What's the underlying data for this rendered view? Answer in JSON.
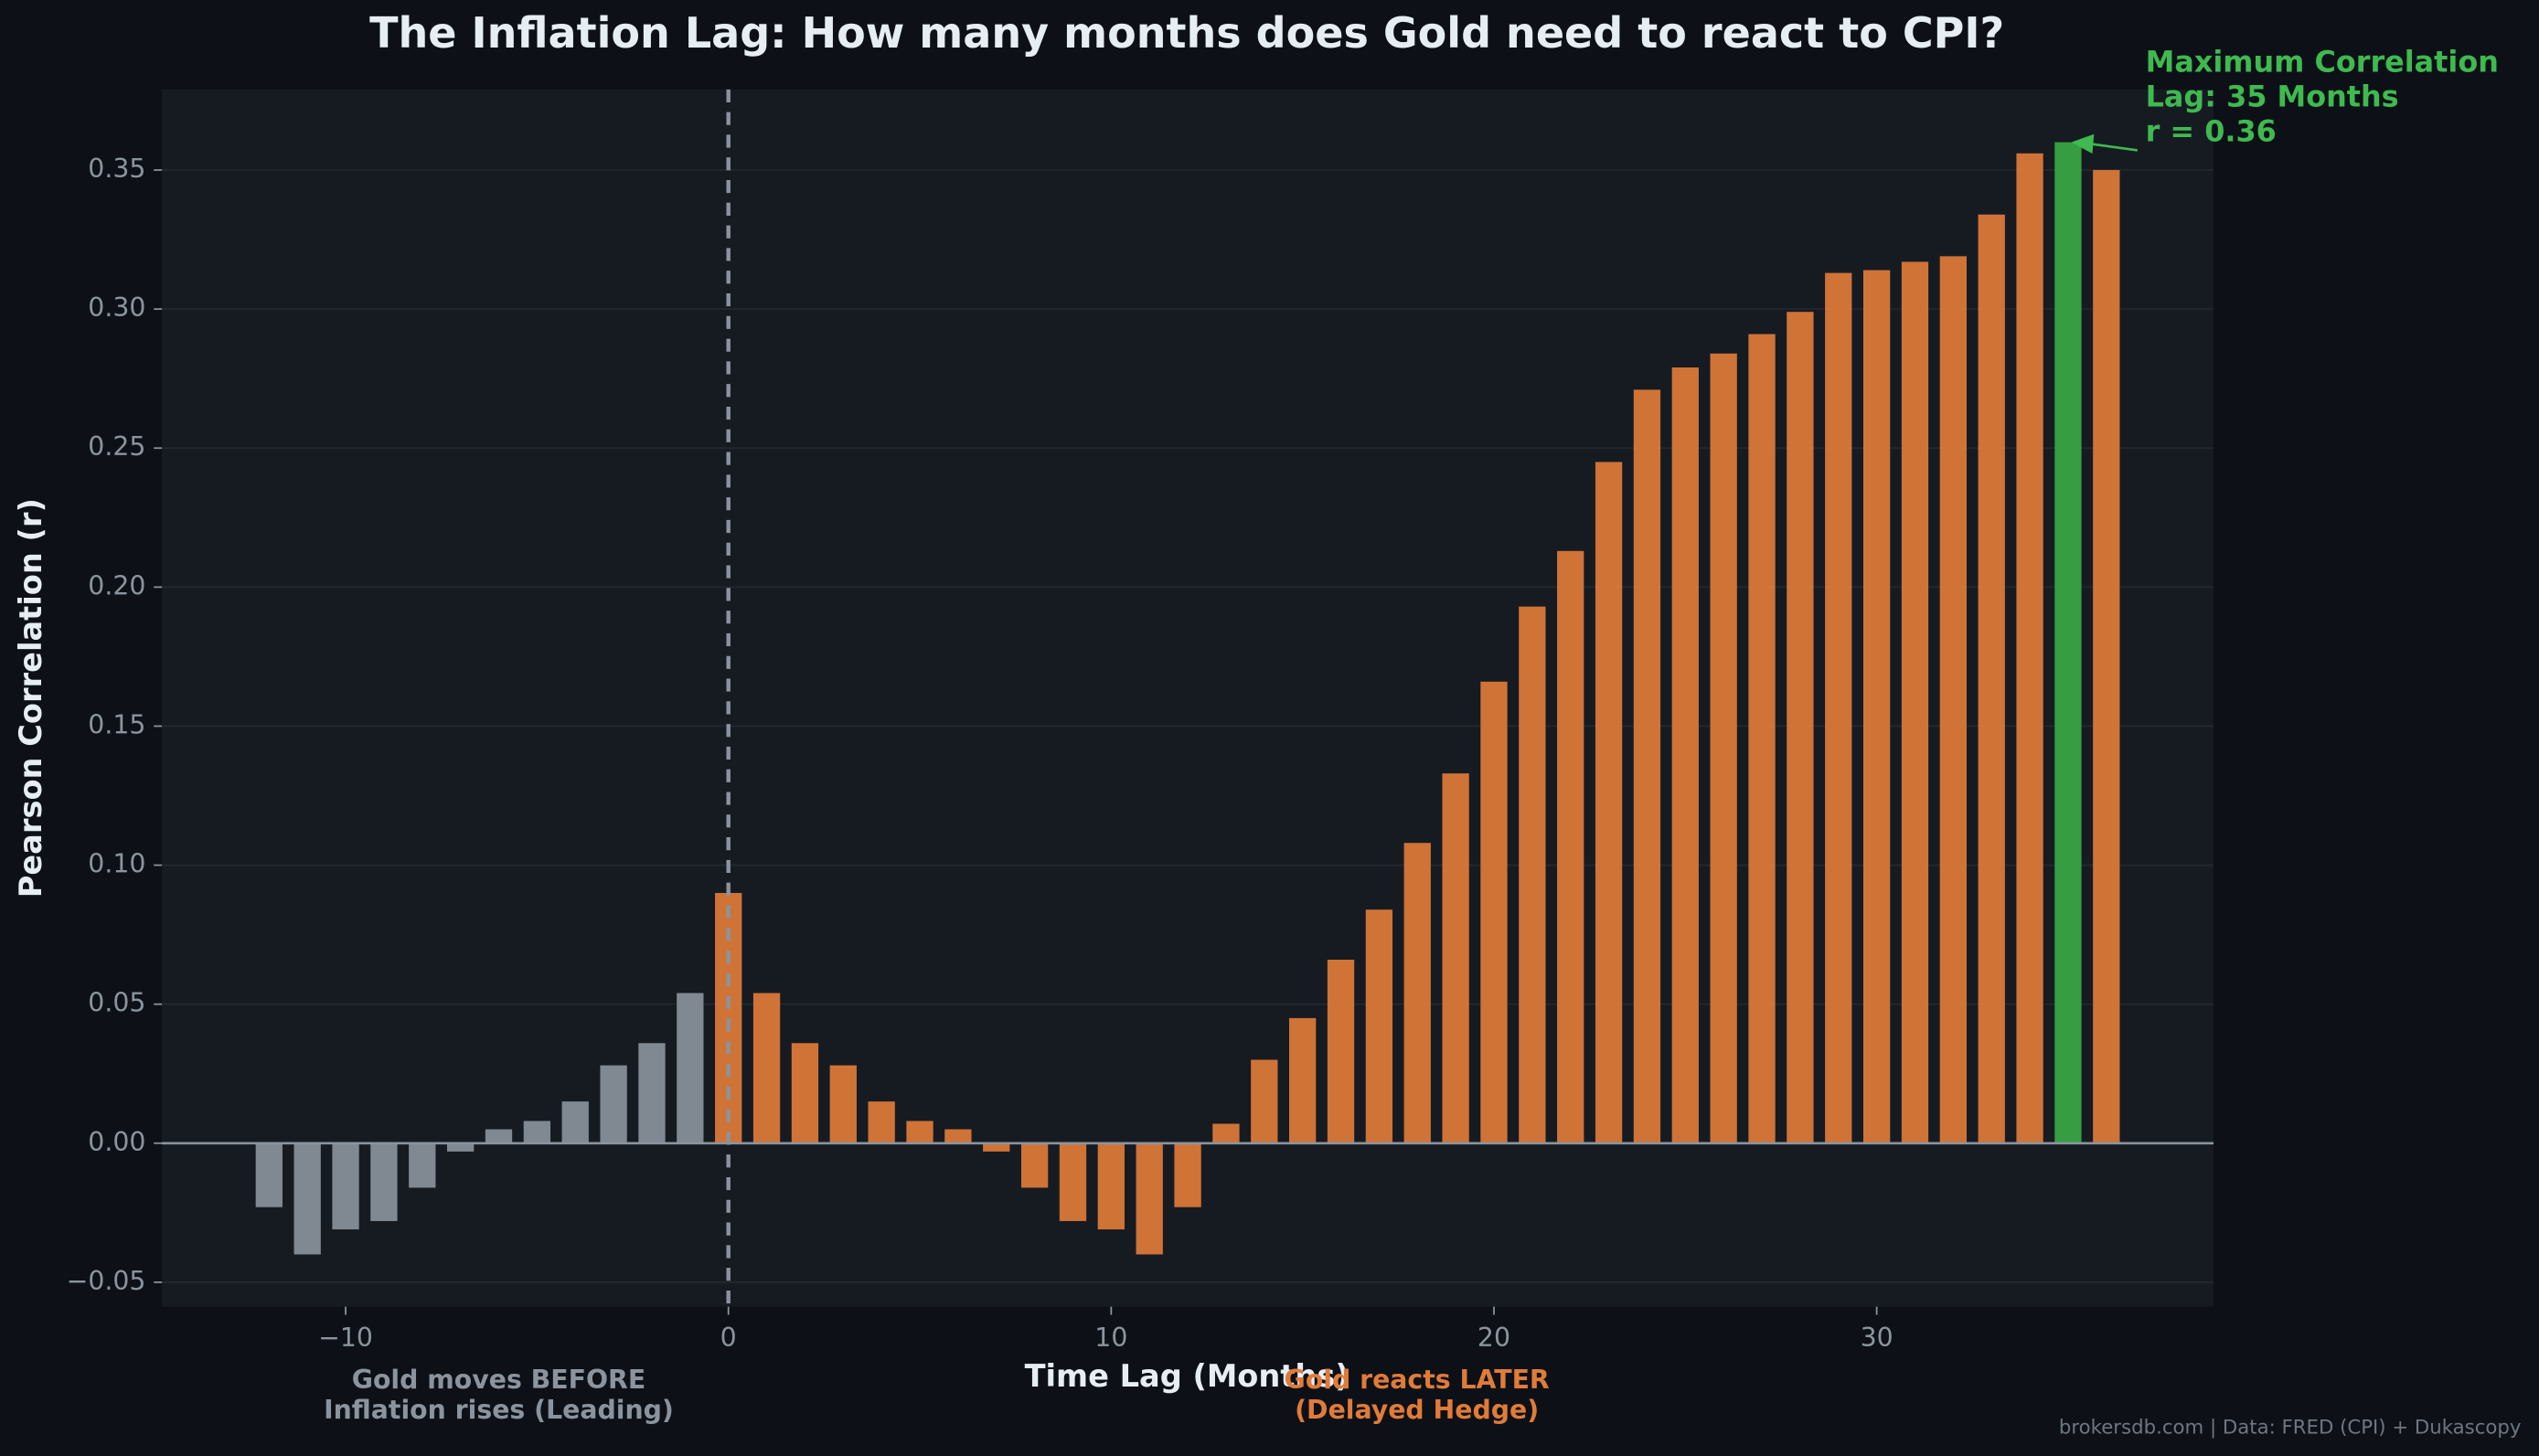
{
  "chart_data": {
    "type": "bar",
    "title": "The Inflation Lag: How many months does Gold need to react to CPI?",
    "x_label": "Time Lag (Months)",
    "y_label": "Pearson Correlation (r)",
    "x": [
      -12,
      -11,
      -10,
      -9,
      -8,
      -7,
      -6,
      -5,
      -4,
      -3,
      -2,
      -1,
      0,
      1,
      2,
      3,
      4,
      5,
      6,
      7,
      8,
      9,
      10,
      11,
      12,
      13,
      14,
      15,
      16,
      17,
      18,
      19,
      20,
      21,
      22,
      23,
      24,
      25,
      26,
      27,
      28,
      29,
      30,
      31,
      32,
      33,
      34,
      35,
      36
    ],
    "values": [
      -0.023,
      -0.04,
      -0.031,
      -0.028,
      -0.016,
      -0.003,
      0.005,
      0.008,
      0.015,
      0.028,
      0.036,
      0.054,
      0.09,
      0.054,
      0.036,
      0.028,
      0.015,
      0.008,
      0.005,
      -0.003,
      -0.016,
      -0.028,
      -0.031,
      -0.04,
      -0.023,
      0.007,
      0.03,
      0.045,
      0.066,
      0.084,
      0.108,
      0.133,
      0.166,
      0.193,
      0.213,
      0.245,
      0.271,
      0.279,
      0.284,
      0.291,
      0.299,
      0.313,
      0.314,
      0.317,
      0.319,
      0.334,
      0.356,
      0.36,
      0.35
    ],
    "colors": [
      "#8a939c",
      "#8a939c",
      "#8a939c",
      "#8a939c",
      "#8a939c",
      "#8a939c",
      "#8a939c",
      "#8a939c",
      "#8a939c",
      "#8a939c",
      "#8a939c",
      "#8a939c",
      "#e07b39",
      "#e07b39",
      "#e07b39",
      "#e07b39",
      "#e07b39",
      "#e07b39",
      "#e07b39",
      "#e07b39",
      "#e07b39",
      "#e07b39",
      "#e07b39",
      "#e07b39",
      "#e07b39",
      "#e07b39",
      "#e07b39",
      "#e07b39",
      "#e07b39",
      "#e07b39",
      "#e07b39",
      "#e07b39",
      "#e07b39",
      "#e07b39",
      "#e07b39",
      "#e07b39",
      "#e07b39",
      "#e07b39",
      "#e07b39",
      "#e07b39",
      "#e07b39",
      "#e07b39",
      "#e07b39",
      "#e07b39",
      "#e07b39",
      "#e07b39",
      "#e07b39",
      "#3aa845",
      "#e07b39"
    ],
    "xlim": [
      -14.8,
      38.8
    ],
    "ylim": [
      -0.0588,
      0.379
    ],
    "xticks": [
      {
        "value": -10,
        "label": "−10"
      },
      0,
      10,
      20,
      30
    ],
    "yticks": [
      {
        "value": -0.05,
        "label": "−0.05"
      },
      {
        "value": 0,
        "label": "0.00"
      },
      {
        "value": 0.05,
        "label": "0.05"
      },
      {
        "value": 0.1,
        "label": "0.10"
      },
      0.15,
      {
        "value": 0.2,
        "label": "0.20"
      },
      0.25,
      {
        "value": 0.3,
        "label": "0.30"
      },
      0.35
    ],
    "grid": true,
    "reference_x": 0,
    "max_annotation": {
      "lines": [
        "Maximum Correlation",
        "Lag: 35 Months",
        "r = 0.36"
      ],
      "color": "#3fb950"
    },
    "left_note": {
      "lines": [
        "Gold moves BEFORE",
        "Inflation rises (Leading)"
      ],
      "color": "#8b949e"
    },
    "right_note": {
      "lines": [
        "Gold reacts LATER",
        "(Delayed Hedge)"
      ],
      "color": "#e07b39"
    },
    "source": "brokersdb.com  |  Data: FRED (CPI) + Dukascopy"
  }
}
